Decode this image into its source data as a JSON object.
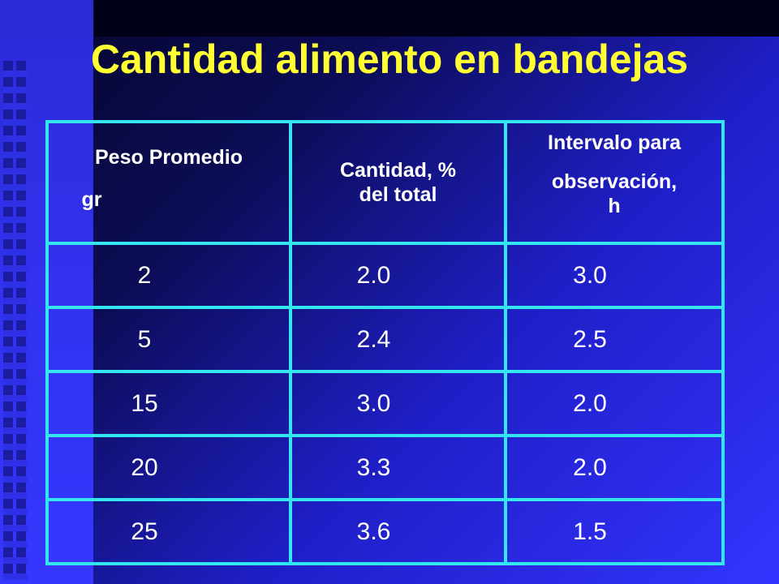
{
  "slide": {
    "title": "Cantidad alimento en bandejas",
    "title_color": "#ffff33",
    "border_color": "#33e6f0",
    "background_color": "#3434ff"
  },
  "table": {
    "headers": [
      {
        "line1": "Peso Promedio",
        "line2": "gr"
      },
      {
        "line1": "Cantidad, %",
        "line2": "del total"
      },
      {
        "line1": "Intervalo para",
        "line2": "observación,",
        "line3": "h"
      }
    ],
    "rows": [
      [
        "2",
        "2.0",
        "3.0"
      ],
      [
        "5",
        "2.4",
        "2.5"
      ],
      [
        "15",
        "3.0",
        "2.0"
      ],
      [
        "20",
        "3.3",
        "2.0"
      ],
      [
        "25",
        "3.6",
        "1.5"
      ]
    ]
  }
}
